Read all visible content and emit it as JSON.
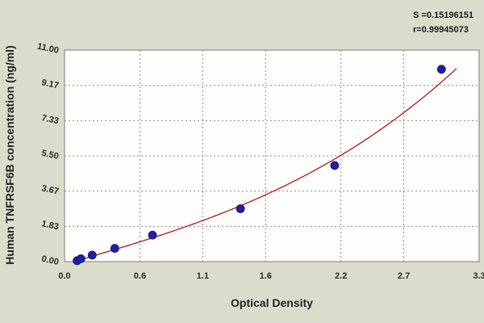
{
  "stats": {
    "s_line": "S =0.15196151",
    "r_line": "r=0.99945073"
  },
  "chart_data": {
    "type": "scatter",
    "xlabel": "Optical Density",
    "ylabel": "Human TNFRSF6B concentration (ng/ml)",
    "xlim": [
      0.0,
      3.3
    ],
    "ylim": [
      0.0,
      11.0
    ],
    "x_ticks": [
      0.0,
      0.6,
      1.1,
      1.6,
      2.2,
      2.7,
      3.3
    ],
    "x_tick_labels": [
      "0.0",
      "0.6",
      "1.1",
      "1.6",
      "2.2",
      "2.7",
      "3.3"
    ],
    "y_ticks": [
      0.0,
      1.83,
      3.67,
      5.5,
      7.33,
      9.17,
      11.0
    ],
    "y_tick_labels": [
      "0.00",
      "1.83",
      "3.67",
      "5.50",
      "7.33",
      "9.17",
      "11.00"
    ],
    "grid": true,
    "points": [
      {
        "x": 0.1,
        "y": 0.05
      },
      {
        "x": 0.13,
        "y": 0.15
      },
      {
        "x": 0.22,
        "y": 0.34
      },
      {
        "x": 0.4,
        "y": 0.69
      },
      {
        "x": 0.7,
        "y": 1.38
      },
      {
        "x": 1.4,
        "y": 2.75
      },
      {
        "x": 2.15,
        "y": 5.0
      },
      {
        "x": 3.0,
        "y": 10.0
      }
    ],
    "fit_curve": {
      "type": "polynomial",
      "coefficients": [
        -0.14,
        1.9,
        0.0,
        0.14
      ],
      "x_range": [
        0.08,
        3.12
      ]
    },
    "colors": {
      "background": "#dcdccc",
      "plot_area": "#fdfdfb",
      "grid": "#8c8c8c",
      "points": "#1f1fa8",
      "curve": "#b01818"
    }
  }
}
